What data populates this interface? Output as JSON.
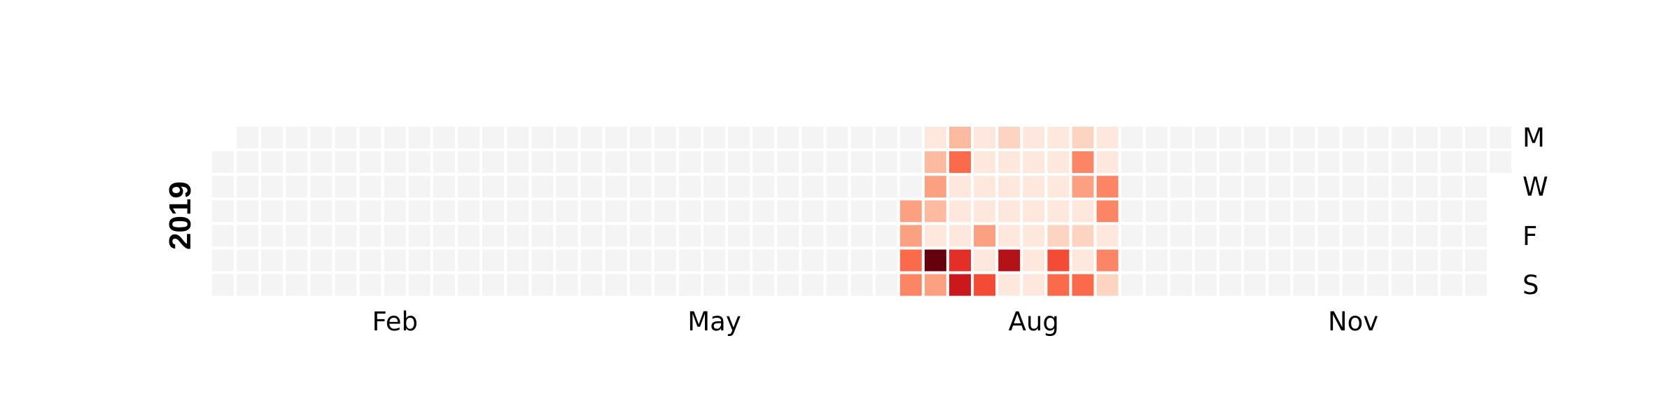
{
  "chart_data": {
    "type": "heatmap",
    "title": "",
    "year": "2019",
    "row_labels": [
      "M",
      "",
      "W",
      "",
      "F",
      "",
      "S"
    ],
    "month_labels": [
      {
        "label": "Feb",
        "week": 7
      },
      {
        "label": "May",
        "week": 20
      },
      {
        "label": "Aug",
        "week": 33
      },
      {
        "label": "Nov",
        "week": 46
      }
    ],
    "weeks": 53,
    "first_day_row": 1,
    "last_day_row": 1,
    "colormap": "Reds",
    "vmin": 0,
    "vmax": 12,
    "empty_color": "#f4f4f4",
    "activity": [
      {
        "week": 28,
        "values": [
          null,
          null,
          null,
          4,
          4,
          6,
          5
        ]
      },
      {
        "week": 29,
        "values": [
          1,
          3,
          4,
          3,
          1,
          12,
          4
        ]
      },
      {
        "week": 30,
        "values": [
          3,
          6,
          1,
          1,
          1,
          8,
          9
        ]
      },
      {
        "week": 31,
        "values": [
          1,
          1,
          1,
          1,
          4,
          1,
          7
        ]
      },
      {
        "week": 32,
        "values": [
          2,
          1,
          1,
          1,
          1,
          10,
          1
        ]
      },
      {
        "week": 33,
        "values": [
          1,
          1,
          1,
          1,
          1,
          1,
          1
        ]
      },
      {
        "week": 34,
        "values": [
          1,
          1,
          1,
          1,
          2,
          7,
          6
        ]
      },
      {
        "week": 35,
        "values": [
          2,
          5,
          4,
          1,
          2,
          1,
          6
        ]
      },
      {
        "week": 36,
        "values": [
          1,
          1,
          5,
          5,
          1,
          5,
          2
        ]
      }
    ]
  }
}
